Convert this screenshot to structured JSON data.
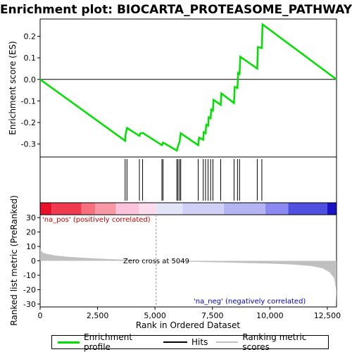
{
  "chart_data": {
    "type": "line",
    "title": "Enrichment plot: BIOCARTA_PROTEASOME_PATHWAY",
    "es_panel": {
      "ylabel": "Enrichment score (ES)",
      "ylim": [
        -0.36,
        0.28
      ],
      "yticks": [
        -0.3,
        -0.2,
        -0.1,
        0.0,
        0.1,
        0.2
      ],
      "ytick_labels": [
        "-0.3",
        "-0.2",
        "-0.1",
        "0.0",
        "0.1",
        "0.2"
      ],
      "line_color": "#00e000",
      "points": [
        [
          0,
          0.0
        ],
        [
          3700,
          -0.285
        ],
        [
          3720,
          -0.255
        ],
        [
          3780,
          -0.225
        ],
        [
          4320,
          -0.262
        ],
        [
          4370,
          -0.25
        ],
        [
          4460,
          -0.248
        ],
        [
          5300,
          -0.305
        ],
        [
          5350,
          -0.293
        ],
        [
          5950,
          -0.33
        ],
        [
          6000,
          -0.31
        ],
        [
          6070,
          -0.29
        ],
        [
          6120,
          -0.25
        ],
        [
          6880,
          -0.305
        ],
        [
          6920,
          -0.27
        ],
        [
          7100,
          -0.28
        ],
        [
          7120,
          -0.245
        ],
        [
          7200,
          -0.25
        ],
        [
          7230,
          -0.21
        ],
        [
          7310,
          -0.215
        ],
        [
          7340,
          -0.175
        ],
        [
          7420,
          -0.18
        ],
        [
          7450,
          -0.14
        ],
        [
          7520,
          -0.145
        ],
        [
          7550,
          -0.095
        ],
        [
          7860,
          -0.118
        ],
        [
          7890,
          -0.065
        ],
        [
          8440,
          -0.11
        ],
        [
          8470,
          -0.035
        ],
        [
          8590,
          -0.04
        ],
        [
          8620,
          0.03
        ],
        [
          8680,
          0.025
        ],
        [
          8710,
          0.105
        ],
        [
          9450,
          0.05
        ],
        [
          9480,
          0.15
        ],
        [
          9650,
          0.145
        ],
        [
          9680,
          0.255
        ],
        [
          12900,
          0.0
        ]
      ]
    },
    "hits": [
      3700,
      3780,
      4320,
      4460,
      5300,
      5350,
      5950,
      6000,
      6070,
      6120,
      6880,
      7100,
      7200,
      7310,
      7420,
      7520,
      7860,
      8440,
      8590,
      8680,
      9450,
      9650
    ],
    "xlim": [
      0,
      12900
    ],
    "metric_panel": {
      "ylabel": "Ranked list metric (PreRanked)",
      "ylim": [
        -32,
        32
      ],
      "yticks": [
        30,
        20,
        10,
        0,
        -10,
        -20,
        -30
      ],
      "ytick_labels": [
        "30",
        "20",
        "10",
        "0",
        "-10",
        "-20",
        "-30"
      ],
      "curve": [
        [
          0,
          8.5
        ],
        [
          100,
          5.8
        ],
        [
          300,
          4.8
        ],
        [
          700,
          3.6
        ],
        [
          1200,
          2.8
        ],
        [
          2000,
          2.0
        ],
        [
          3000,
          1.2
        ],
        [
          4000,
          0.6
        ],
        [
          5049,
          0.0
        ],
        [
          6000,
          -0.4
        ],
        [
          7000,
          -0.8
        ],
        [
          8000,
          -1.1
        ],
        [
          9000,
          -1.5
        ],
        [
          10000,
          -1.9
        ],
        [
          11000,
          -2.6
        ],
        [
          11800,
          -3.6
        ],
        [
          12300,
          -5.2
        ],
        [
          12600,
          -8.0
        ],
        [
          12800,
          -12.0
        ],
        [
          12880,
          -20.0
        ],
        [
          12900,
          -29.0
        ]
      ],
      "fill_color": "#c0c0c0"
    },
    "color_bar": {
      "segments": [
        {
          "to": 500,
          "color": "#e8102a"
        },
        {
          "to": 1800,
          "color": "#f03a50"
        },
        {
          "to": 2400,
          "color": "#f6707e"
        },
        {
          "to": 3300,
          "color": "#f898a4"
        },
        {
          "to": 4300,
          "color": "#fcc4dc"
        },
        {
          "to": 5049,
          "color": "#fadcec"
        },
        {
          "to": 6200,
          "color": "#e4e4f8"
        },
        {
          "to": 8000,
          "color": "#d0d0f6"
        },
        {
          "to": 9800,
          "color": "#b4b4f2"
        },
        {
          "to": 10800,
          "color": "#8a8af0"
        },
        {
          "to": 12500,
          "color": "#5050e0"
        },
        {
          "to": 12900,
          "color": "#1a14c8"
        }
      ]
    },
    "xlabel": "Rank in Ordered Dataset",
    "xticks": [
      0,
      2500,
      5000,
      7500,
      10000,
      12500
    ],
    "xtick_labels": [
      "0",
      "2,500",
      "5,000",
      "7,500",
      "10,000",
      "12,500"
    ],
    "annotations": {
      "pos_label": "'na_pos' (positively correlated)",
      "neg_label": "'na_neg' (negatively correlated)",
      "zero_cross": "Zero cross at 5049",
      "zero_cross_rank": 5049
    },
    "legend": {
      "placement": "bottom",
      "items": [
        {
          "label": "Enrichment profile",
          "color": "#00e000"
        },
        {
          "label": "Hits",
          "color": "#000000"
        },
        {
          "label": "Ranking metric scores",
          "color": "#c0c0c0"
        }
      ]
    }
  }
}
